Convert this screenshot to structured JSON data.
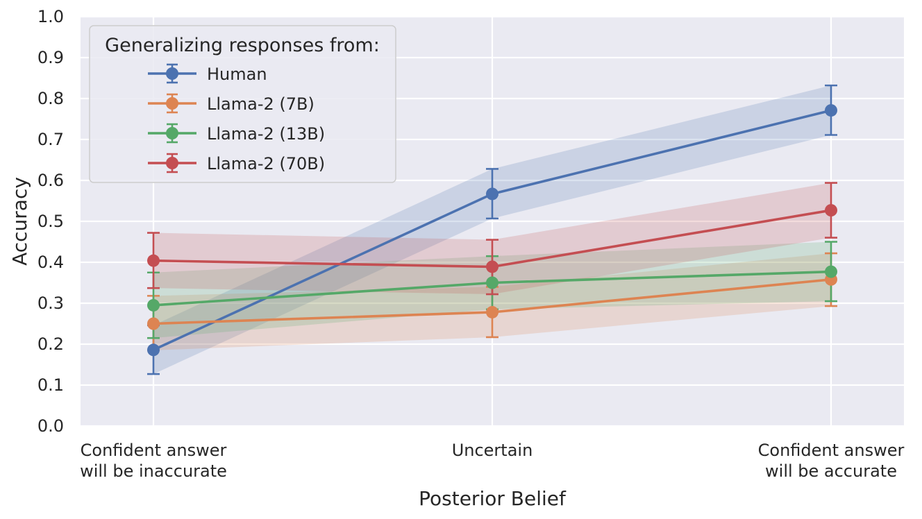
{
  "chart_data": {
    "type": "line",
    "title": "",
    "xlabel": "Posterior Belief",
    "ylabel": "Accuracy",
    "ylim": [
      0.0,
      1.0
    ],
    "yticks": [
      0.0,
      0.1,
      0.2,
      0.3,
      0.4,
      0.5,
      0.6,
      0.7,
      0.8,
      0.9,
      1.0
    ],
    "ytick_labels": [
      "0.0",
      "0.1",
      "0.2",
      "0.3",
      "0.4",
      "0.5",
      "0.6",
      "0.7",
      "0.8",
      "0.9",
      "1.0"
    ],
    "categories": [
      [
        "Confident answer",
        "will be inaccurate"
      ],
      [
        "Uncertain"
      ],
      [
        "Confident answer",
        "will be accurate"
      ]
    ],
    "grid": true,
    "legend": {
      "title": "Generalizing responses from:",
      "placement": "top-left"
    },
    "series": [
      {
        "name": "Human",
        "color": "#4c72b0",
        "values": [
          0.186,
          0.567,
          0.771
        ],
        "err_low": [
          0.127,
          0.507,
          0.711
        ],
        "err_high": [
          0.246,
          0.628,
          0.832
        ],
        "band_low": [
          0.127,
          0.507,
          0.711
        ],
        "band_high": [
          0.246,
          0.628,
          0.832
        ]
      },
      {
        "name": "Llama-2 (7B)",
        "color": "#dd8452",
        "values": [
          0.25,
          0.278,
          0.358
        ],
        "err_low": [
          0.185,
          0.217,
          0.293
        ],
        "err_high": [
          0.318,
          0.34,
          0.422
        ],
        "band_low": [
          0.185,
          0.217,
          0.293
        ],
        "band_high": [
          0.318,
          0.34,
          0.422
        ]
      },
      {
        "name": "Llama-2 (13B)",
        "color": "#55a868",
        "values": [
          0.295,
          0.35,
          0.377
        ],
        "err_low": [
          0.215,
          0.285,
          0.305
        ],
        "err_high": [
          0.375,
          0.415,
          0.45
        ],
        "band_low": [
          0.215,
          0.285,
          0.305
        ],
        "band_high": [
          0.375,
          0.415,
          0.45
        ]
      },
      {
        "name": "Llama-2 (70B)",
        "color": "#c44e52",
        "values": [
          0.404,
          0.389,
          0.527
        ],
        "err_low": [
          0.337,
          0.322,
          0.46
        ],
        "err_high": [
          0.472,
          0.455,
          0.594
        ],
        "band_low": [
          0.337,
          0.322,
          0.46
        ],
        "band_high": [
          0.472,
          0.455,
          0.594
        ]
      }
    ]
  }
}
